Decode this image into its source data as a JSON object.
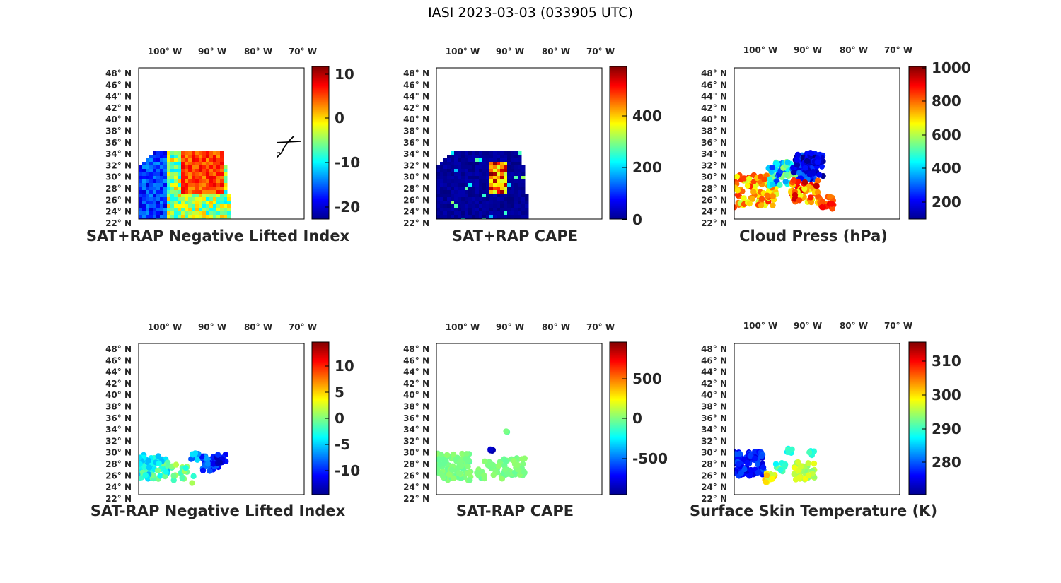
{
  "figure_title": "IASI 2023-03-03 (033905 UTC)",
  "lon_ticks": [
    "100° W",
    "90° W",
    "80° W",
    "70° W"
  ],
  "lat_ticks": [
    "48° N",
    "46° N",
    "44° N",
    "42° N",
    "40° N",
    "38° N",
    "36° N",
    "34° N",
    "32° N",
    "30° N",
    "28° N",
    "26° N",
    "24° N",
    "22° N"
  ],
  "panels": [
    {
      "id": "p1",
      "title": "SAT+RAP Negative Lifted Index",
      "colorbar_ticks": [
        "10",
        "0",
        "-10",
        "-20"
      ],
      "colorbar_range": [
        -25,
        14
      ],
      "field": "swath_li"
    },
    {
      "id": "p2",
      "title": "SAT+RAP CAPE",
      "colorbar_ticks": [
        "400",
        "200",
        "0"
      ],
      "colorbar_range": [
        0,
        580
      ],
      "field": "swath_cape"
    },
    {
      "id": "p3",
      "title": "Cloud Press (hPa)",
      "colorbar_ticks": [
        "1000",
        "800",
        "600",
        "400",
        "200"
      ],
      "colorbar_range": [
        100,
        1000
      ],
      "field": "dots_cloud"
    },
    {
      "id": "p4",
      "title": "SAT-RAP Negative Lifted Index",
      "colorbar_ticks": [
        "10",
        "5",
        "0",
        "-5",
        "-10"
      ],
      "colorbar_range": [
        -15,
        15
      ],
      "field": "dots_li"
    },
    {
      "id": "p5",
      "title": "SAT-RAP CAPE",
      "colorbar_ticks": [
        "500",
        "0",
        "-500"
      ],
      "colorbar_range": [
        -950,
        950
      ],
      "field": "dots_cape"
    },
    {
      "id": "p6",
      "title": "Surface Skin Temperature (K)",
      "colorbar_ticks": [
        "310",
        "300",
        "290",
        "280"
      ],
      "colorbar_range": [
        271,
        316
      ],
      "field": "dots_temp"
    }
  ],
  "colors": {
    "colormap": "jet",
    "frame": "#000000",
    "state_lines": "#000000",
    "text": "#262626"
  }
}
